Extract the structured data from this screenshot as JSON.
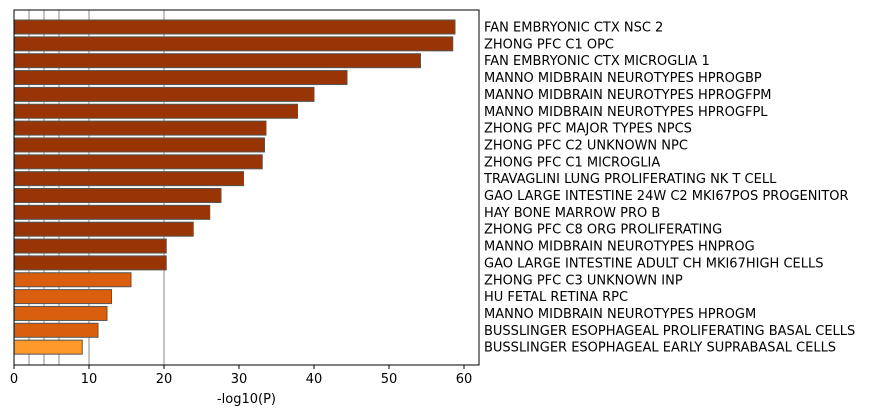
{
  "chart_data": {
    "type": "bar",
    "orientation": "horizontal",
    "categories": [
      "FAN EMBRYONIC CTX NSC 2",
      "ZHONG PFC C1 OPC",
      "FAN EMBRYONIC CTX MICROGLIA 1",
      "MANNO MIDBRAIN NEUROTYPES HPROGBP",
      "MANNO MIDBRAIN NEUROTYPES HPROGFPM",
      "MANNO MIDBRAIN NEUROTYPES HPROGFPL",
      "ZHONG PFC MAJOR TYPES NPCS",
      "ZHONG PFC C2 UNKNOWN NPC",
      "ZHONG PFC C1 MICROGLIA",
      "TRAVAGLINI LUNG PROLIFERATING NK T CELL",
      "GAO LARGE INTESTINE 24W C2 MKI67POS PROGENITOR",
      "HAY BONE MARROW PRO B",
      "ZHONG PFC C8 ORG PROLIFERATING",
      "MANNO MIDBRAIN NEUROTYPES HNPROG",
      "GAO LARGE INTESTINE ADULT CH MKI67HIGH CELLS",
      "ZHONG PFC C3 UNKNOWN INP",
      "HU FETAL RETINA RPC",
      "MANNO MIDBRAIN NEUROTYPES HPROGM",
      "BUSSLINGER ESOPHAGEAL PROLIFERATING BASAL CELLS",
      "BUSSLINGER ESOPHAGEAL EARLY SUPRABASAL CELLS"
    ],
    "values": [
      58.8,
      58.5,
      54.2,
      44.4,
      40.0,
      37.8,
      33.6,
      33.4,
      33.1,
      30.6,
      27.6,
      26.1,
      23.9,
      20.3,
      20.3,
      15.6,
      13.0,
      12.4,
      11.2,
      9.1
    ],
    "bar_colors": [
      "#993404",
      "#993404",
      "#993404",
      "#993404",
      "#993404",
      "#993404",
      "#993404",
      "#993404",
      "#993404",
      "#993404",
      "#993404",
      "#993404",
      "#993404",
      "#993404",
      "#993404",
      "#d95f0e",
      "#d95f0e",
      "#d95f0e",
      "#d95f0e",
      "#fe9929"
    ],
    "bar_edge_color": "#555555",
    "xlabel": "-log10(P)",
    "ylabel": "",
    "title": "",
    "xlim": [
      0,
      62
    ],
    "xticks": [
      0,
      10,
      20,
      30,
      40,
      50,
      60
    ],
    "reference_lines": [
      2,
      4,
      6,
      10,
      20
    ],
    "reference_line_color": "#b0b0b0",
    "category_labels_side": "right",
    "grid": false
  }
}
